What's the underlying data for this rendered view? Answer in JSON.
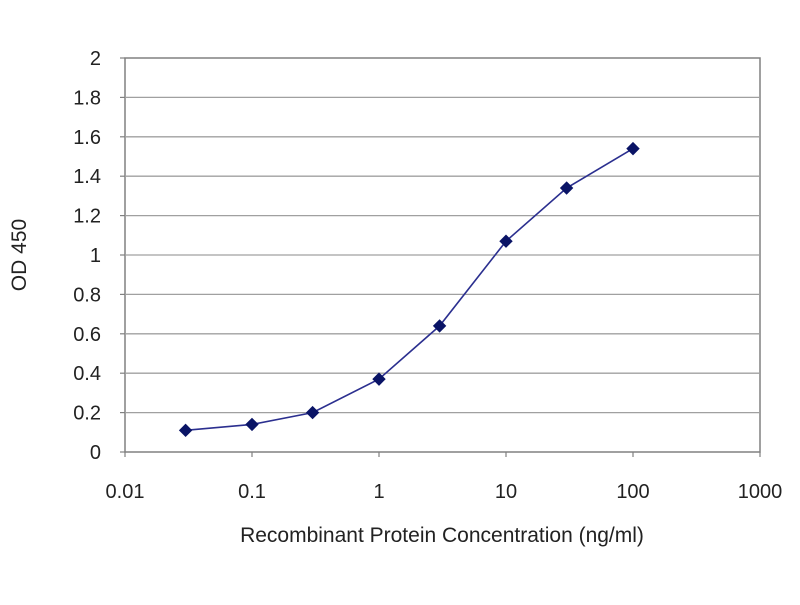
{
  "chart_data": {
    "type": "line",
    "title": "",
    "xlabel": "Recombinant Protein Concentration (ng/ml)",
    "ylabel": "OD 450",
    "x_scale": "log",
    "xlim": [
      0.01,
      1000
    ],
    "ylim": [
      0,
      2
    ],
    "x_ticks": [
      0.01,
      0.1,
      1,
      10,
      100,
      1000
    ],
    "x_tick_labels": [
      "0.01",
      "0.1",
      "1",
      "10",
      "100",
      "1000"
    ],
    "y_ticks": [
      0,
      0.2,
      0.4,
      0.6,
      0.8,
      1,
      1.2,
      1.4,
      1.6,
      1.8,
      2
    ],
    "y_tick_labels": [
      "0",
      "0.2",
      "0.4",
      "0.6",
      "0.8",
      "1",
      "1.2",
      "1.4",
      "1.6",
      "1.8",
      "2"
    ],
    "grid": "horizontal",
    "legend": "none",
    "series": [
      {
        "x": [
          0.03,
          0.1,
          0.3,
          1,
          3,
          10,
          30,
          100
        ],
        "y": [
          0.11,
          0.14,
          0.2,
          0.37,
          0.64,
          1.07,
          1.34,
          1.54
        ],
        "color": "#2b2f8f",
        "marker": "diamond",
        "marker_color": "#0a1466"
      }
    ],
    "plot_background": "#ffffff",
    "grid_color": "#a0a0a0",
    "border_color": "#808080"
  }
}
